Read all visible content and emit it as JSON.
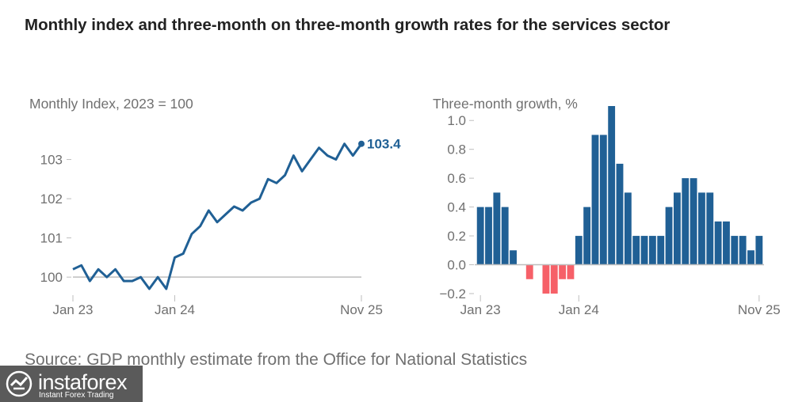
{
  "title": "Monthly index and three-month on three-month growth rates for the services sector",
  "source": "Source: GDP monthly estimate from the Office for National Statistics",
  "logo": {
    "name": "instaforex",
    "tagline": "Instant Forex Trading"
  },
  "colors": {
    "line": "#206095",
    "bar_pos": "#206095",
    "bar_neg": "#f66068",
    "axis": "#bebebe",
    "text": "#707070"
  },
  "chart_data": [
    {
      "type": "line",
      "title": "Monthly Index, 2023 = 100",
      "ylim": [
        99.6,
        104
      ],
      "yticks": [
        100,
        101,
        102,
        103
      ],
      "ytick_labels": [
        "100",
        "101",
        "102",
        "103"
      ],
      "xtick_labels": [
        {
          "index": 0,
          "label": "Jan 23"
        },
        {
          "index": 12,
          "label": "Jan 24"
        },
        {
          "index": 34,
          "label": "Nov 25"
        }
      ],
      "end_label": "103.4",
      "values": [
        100.2,
        100.3,
        99.9,
        100.2,
        100.0,
        100.2,
        99.9,
        99.9,
        100.0,
        99.7,
        100.0,
        99.7,
        100.5,
        100.6,
        101.1,
        101.3,
        101.7,
        101.4,
        101.6,
        101.8,
        101.7,
        101.9,
        102.0,
        102.5,
        102.4,
        102.6,
        103.1,
        102.7,
        103.0,
        103.3,
        103.1,
        103.0,
        103.4,
        103.1,
        103.4
      ]
    },
    {
      "type": "bar",
      "title": "Three-month growth, %",
      "ylim": [
        -0.2,
        1.1
      ],
      "yticks": [
        -0.2,
        0.0,
        0.2,
        0.4,
        0.6,
        0.8,
        1.0
      ],
      "ytick_labels": [
        "−0.2",
        "0.0",
        "0.2",
        "0.4",
        "0.6",
        "0.8",
        "1.0"
      ],
      "xtick_labels": [
        {
          "index": 0,
          "label": "Jan 23"
        },
        {
          "index": 12,
          "label": "Jan 24"
        },
        {
          "index": 34,
          "label": "Nov 25"
        }
      ],
      "values": [
        0.4,
        0.4,
        0.5,
        0.4,
        0.1,
        0.0,
        -0.1,
        0.0,
        -0.2,
        -0.2,
        -0.1,
        -0.1,
        0.2,
        0.4,
        0.9,
        0.9,
        1.1,
        0.7,
        0.5,
        0.2,
        0.2,
        0.2,
        0.2,
        0.4,
        0.5,
        0.6,
        0.6,
        0.5,
        0.5,
        0.3,
        0.3,
        0.2,
        0.2,
        0.1,
        0.2
      ]
    }
  ]
}
